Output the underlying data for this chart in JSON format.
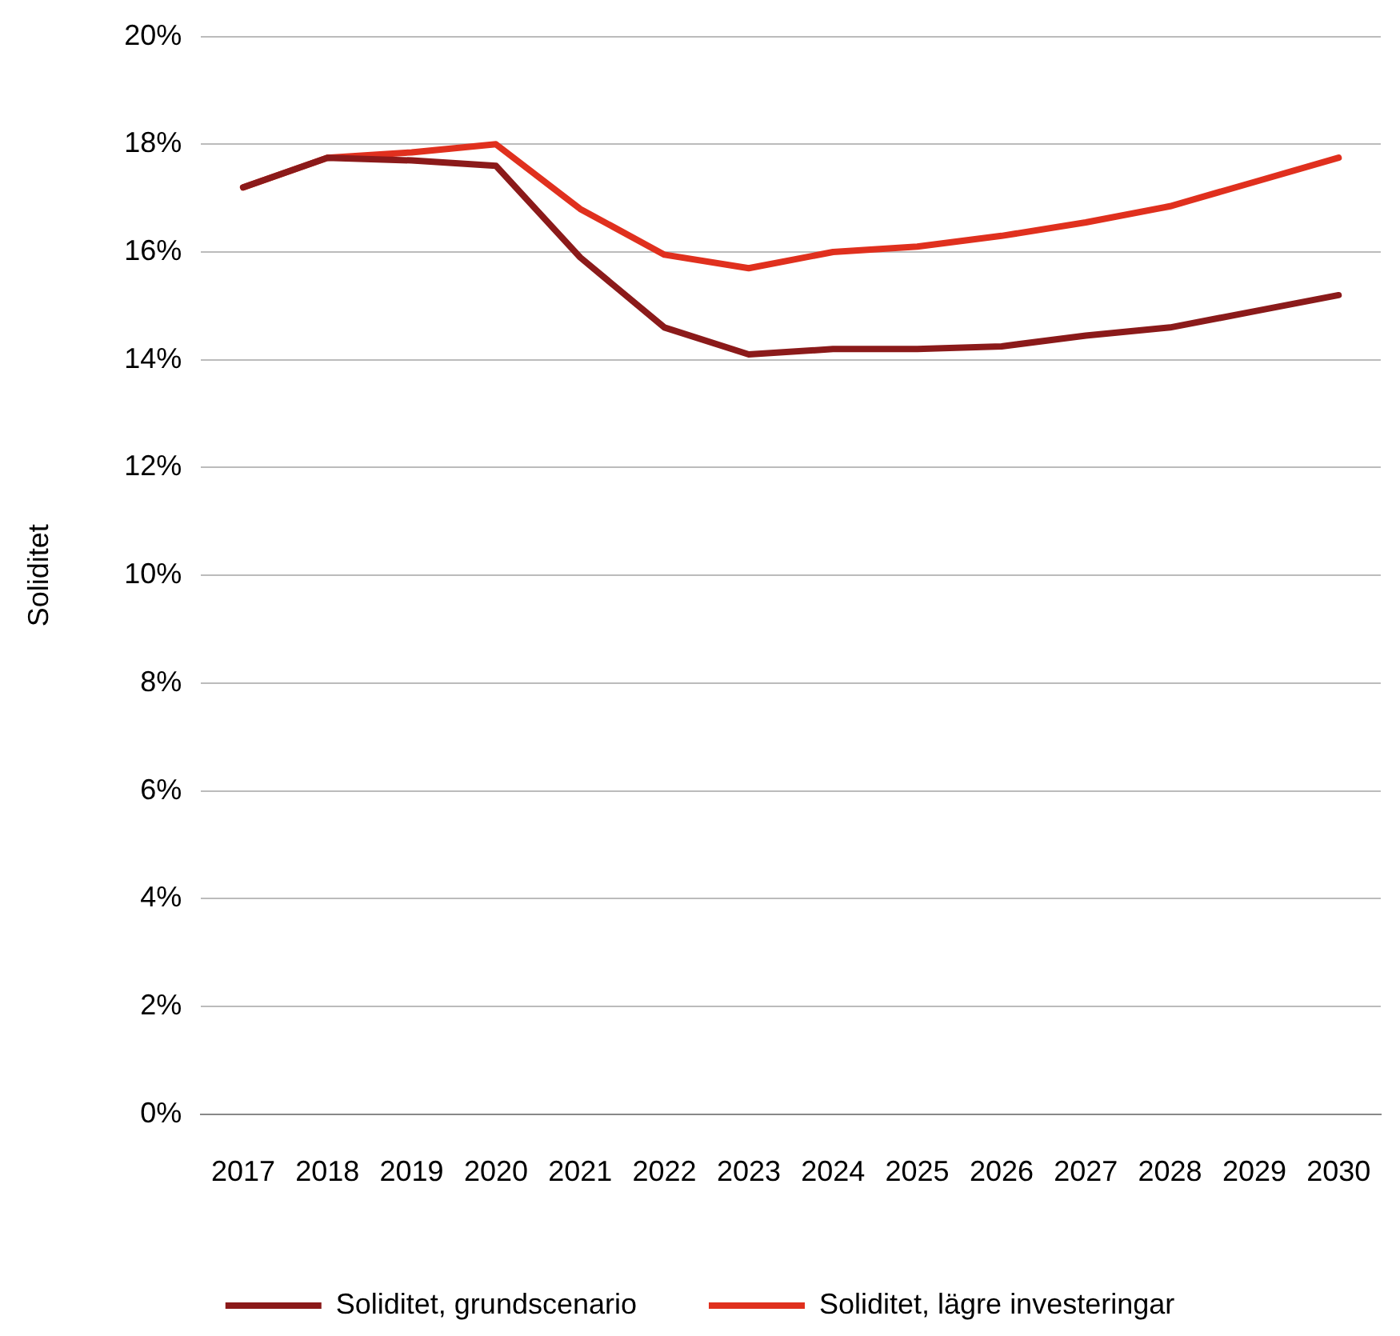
{
  "chart_data": {
    "type": "line",
    "ylabel": "Soliditet",
    "categories": [
      "2017",
      "2018",
      "2019",
      "2020",
      "2021",
      "2022",
      "2023",
      "2024",
      "2025",
      "2026",
      "2027",
      "2028",
      "2029",
      "2030"
    ],
    "series": [
      {
        "name": "Soliditet, grundscenario",
        "color": "#8b1a1a",
        "values": [
          17.2,
          17.75,
          17.7,
          17.6,
          15.9,
          14.6,
          14.1,
          14.2,
          14.2,
          14.25,
          14.45,
          14.6,
          14.9,
          15.2
        ]
      },
      {
        "name": "Soliditet, lägre investeringar",
        "color": "#e0301e",
        "values": [
          17.2,
          17.75,
          17.85,
          18.0,
          16.8,
          15.95,
          15.7,
          16.0,
          16.1,
          16.3,
          16.55,
          16.85,
          17.3,
          17.75
        ]
      }
    ],
    "ylim": [
      0,
      20
    ],
    "yticks": [
      {
        "value": 0,
        "label": "0%"
      },
      {
        "value": 2,
        "label": "2%"
      },
      {
        "value": 4,
        "label": "4%"
      },
      {
        "value": 6,
        "label": "6%"
      },
      {
        "value": 8,
        "label": "8%"
      },
      {
        "value": 10,
        "label": "10%"
      },
      {
        "value": 12,
        "label": "12%"
      },
      {
        "value": 14,
        "label": "14%"
      },
      {
        "value": 16,
        "label": "16%"
      },
      {
        "value": 18,
        "label": "18%"
      },
      {
        "value": 20,
        "label": "20%"
      }
    ],
    "grid": "y",
    "legend": "bottom",
    "marker": "none",
    "line_style": "solid"
  }
}
